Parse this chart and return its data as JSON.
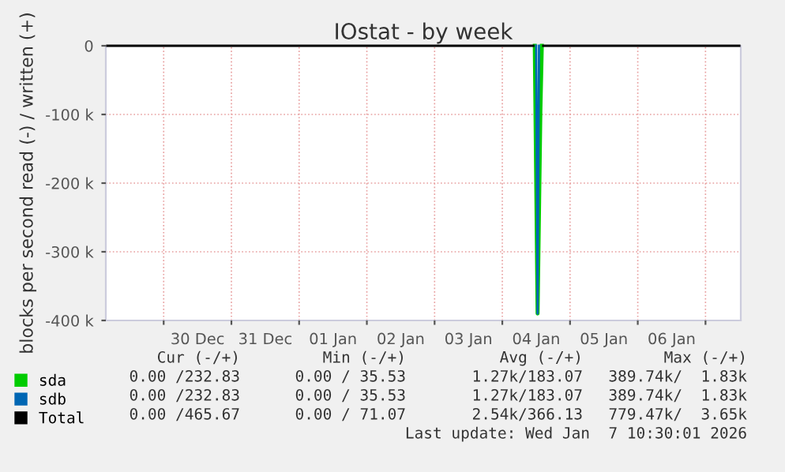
{
  "chart_data": {
    "type": "line",
    "title": "IOstat - by week",
    "ylabel": "blocks per second read (-) / written (+)",
    "series": [
      {
        "name": "sda",
        "color": "#00cc00",
        "x": [
          "2026-01-04T11:30",
          "2026-01-04T12:30",
          "2026-01-04T13:30",
          "2026-01-04T14:00"
        ],
        "values": [
          0,
          -390000,
          -94000,
          0
        ]
      },
      {
        "name": "sdb",
        "color": "#0066b3",
        "x": [
          "2026-01-04T12:00",
          "2026-01-04T12:30",
          "2026-01-04T13:00"
        ],
        "values": [
          0,
          -390000,
          0
        ]
      },
      {
        "name": "Total",
        "color": "#000000",
        "x": [
          "2025-12-29T04:00",
          "2026-01-04T11:00",
          "2026-01-04T11:30",
          "2026-01-04T14:00",
          "2026-01-04T14:30",
          "2026-01-07T12:00"
        ],
        "values": [
          0,
          0,
          null,
          null,
          0,
          0
        ]
      }
    ],
    "xlim": [
      "2025-12-29T03:30",
      "2026-01-07T12:30"
    ],
    "xticks": [
      {
        "value": "2025-12-30T12:00",
        "label": "30 Dec"
      },
      {
        "value": "2025-12-31T12:00",
        "label": "31 Dec"
      },
      {
        "value": "2026-01-01T12:00",
        "label": "01 Jan"
      },
      {
        "value": "2026-01-02T12:00",
        "label": "02 Jan"
      },
      {
        "value": "2026-01-03T12:00",
        "label": "03 Jan"
      },
      {
        "value": "2026-01-04T12:00",
        "label": "04 Jan"
      },
      {
        "value": "2026-01-05T12:00",
        "label": "05 Jan"
      },
      {
        "value": "2026-01-06T12:00",
        "label": "06 Jan"
      },
      {
        "value": "2025-12-30T00:00",
        "label": null
      },
      {
        "value": "2025-12-31T00:00",
        "label": null
      },
      {
        "value": "2026-01-01T00:00",
        "label": null
      },
      {
        "value": "2026-01-02T00:00",
        "label": null
      },
      {
        "value": "2026-01-03T00:00",
        "label": null
      },
      {
        "value": "2026-01-04T00:00",
        "label": null
      },
      {
        "value": "2026-01-05T00:00",
        "label": null
      },
      {
        "value": "2026-01-06T00:00",
        "label": null
      },
      {
        "value": "2026-01-07T00:00",
        "label": null
      }
    ],
    "ylim": [
      -400000,
      0
    ],
    "yticks": [
      {
        "value": 0,
        "label": "0"
      },
      {
        "value": -100000,
        "label": "-100 k"
      },
      {
        "value": -200000,
        "label": "-200 k"
      },
      {
        "value": -300000,
        "label": "-300 k"
      },
      {
        "value": -400000,
        "label": "-400 k"
      }
    ],
    "grid": true,
    "legend": "bottom left",
    "annotations": [
      "Cur (-/+)",
      "Min (-/+)",
      "Avg (-/+)",
      "Max (-/+)",
      "0.00 /232.83",
      "0.00 / 35.53",
      "1.27k/183.07",
      "389.74k/  1.83k",
      "0.00 /232.83",
      "0.00 / 35.53",
      "1.27k/183.07",
      "389.74k/  1.83k",
      "0.00 /465.67",
      "0.00 / 71.07",
      "2.54k/366.13",
      "779.47k/  3.65k",
      "Last update: Wed Jan  7 10:30:01 2026"
    ]
  }
}
